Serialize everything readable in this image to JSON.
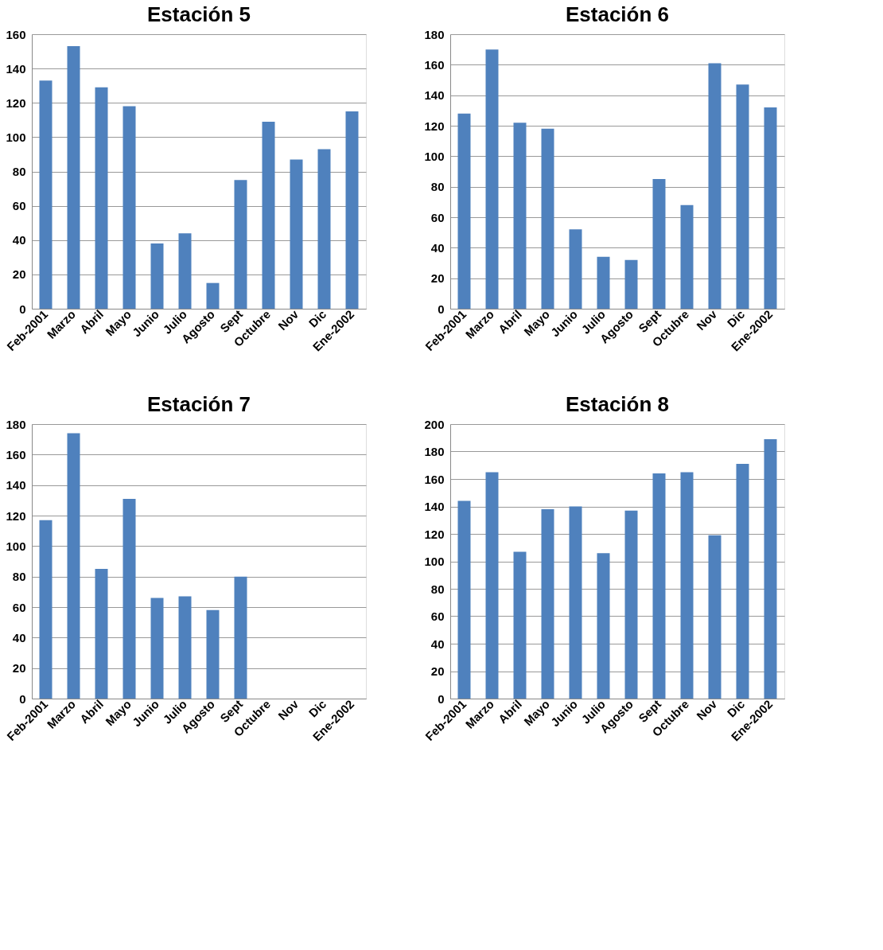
{
  "chart_data": [
    {
      "type": "bar",
      "title": "Estación 5",
      "categories": [
        "Feb-2001",
        "Marzo",
        "Abril",
        "Mayo",
        "Junio",
        "Julio",
        "Agosto",
        "Sept",
        "Octubre",
        "Nov",
        "Dic",
        "Ene-2002"
      ],
      "values": [
        133,
        153,
        129,
        118,
        38,
        44,
        15,
        75,
        109,
        87,
        93,
        115
      ],
      "color": "#4f81bd",
      "ylim": [
        0,
        160
      ],
      "yticks": [
        0,
        20,
        40,
        60,
        80,
        100,
        120,
        140,
        160
      ],
      "grid": "y"
    },
    {
      "type": "bar",
      "title": "Estación 6",
      "categories": [
        "Feb-2001",
        "Marzo",
        "Abril",
        "Mayo",
        "Junio",
        "Julio",
        "Agosto",
        "Sept",
        "Octubre",
        "Nov",
        "Dic",
        "Ene-2002"
      ],
      "values": [
        128,
        170,
        122,
        118,
        52,
        34,
        32,
        85,
        68,
        161,
        147,
        132
      ],
      "color": "#4f81bd",
      "ylim": [
        0,
        180
      ],
      "yticks": [
        0,
        20,
        40,
        60,
        80,
        100,
        120,
        140,
        160,
        180
      ],
      "grid": "y"
    },
    {
      "type": "bar",
      "title": "Estación 7",
      "categories": [
        "Feb-2001",
        "Marzo",
        "Abril",
        "Mayo",
        "Junio",
        "Julio",
        "Agosto",
        "Sept",
        "Octubre",
        "Nov",
        "Dic",
        "Ene-2002"
      ],
      "values": [
        117,
        174,
        85,
        131,
        66,
        67,
        58,
        80,
        null,
        null,
        null,
        null
      ],
      "color": "#4f81bd",
      "ylim": [
        0,
        180
      ],
      "yticks": [
        0,
        20,
        40,
        60,
        80,
        100,
        120,
        140,
        160,
        180
      ],
      "grid": "y"
    },
    {
      "type": "bar",
      "title": "Estación 8",
      "categories": [
        "Feb-2001",
        "Marzo",
        "Abril",
        "Mayo",
        "Junio",
        "Julio",
        "Agosto",
        "Sept",
        "Octubre",
        "Nov",
        "Dic",
        "Ene-2002"
      ],
      "values": [
        144,
        165,
        107,
        138,
        140,
        106,
        137,
        164,
        165,
        119,
        171,
        189
      ],
      "color": "#4f81bd",
      "ylim": [
        0,
        200
      ],
      "yticks": [
        0,
        20,
        40,
        60,
        80,
        100,
        120,
        140,
        160,
        180,
        200
      ],
      "grid": "y"
    }
  ]
}
